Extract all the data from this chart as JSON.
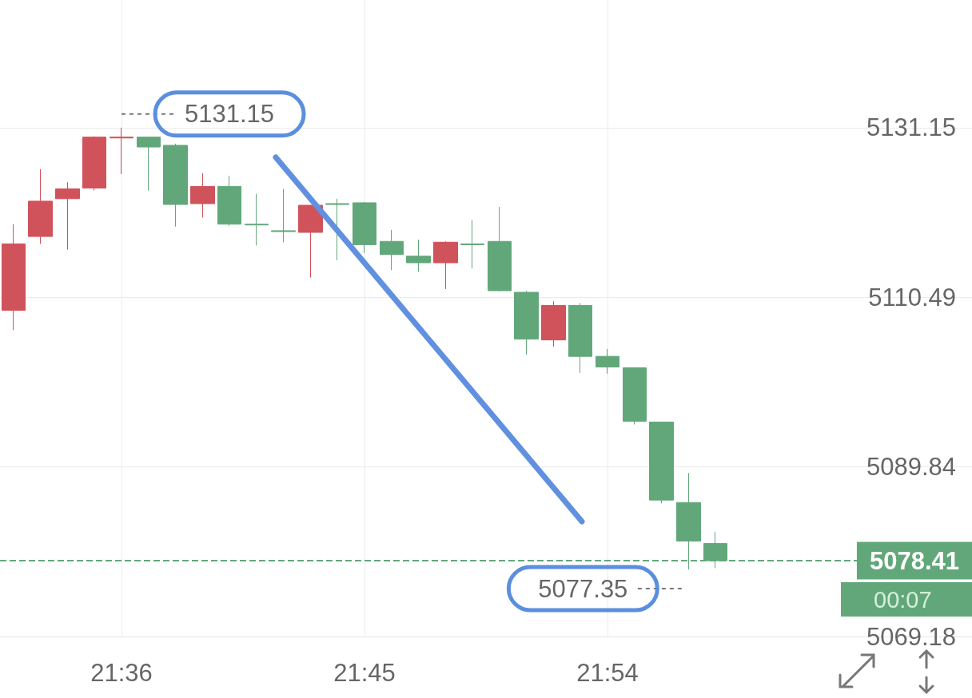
{
  "chart_data": {
    "type": "candlestick",
    "x": [
      21.5333,
      21.55,
      21.5667,
      21.5833,
      21.6,
      21.6167,
      21.6333,
      21.65,
      21.6667,
      21.6833,
      21.7,
      21.7167,
      21.7333,
      21.75,
      21.7667,
      21.7833,
      21.8,
      21.8167,
      21.8333,
      21.85,
      21.8667,
      21.8833,
      21.9,
      21.9167,
      21.9333,
      21.95,
      21.9667
    ],
    "ohlc": [
      [
        5108.9,
        5119.4,
        5106.5,
        5117.0
      ],
      [
        5117.9,
        5126.1,
        5117.0,
        5122.2
      ],
      [
        5122.5,
        5124.5,
        5116.3,
        5123.7
      ],
      [
        5123.8,
        5130.1,
        5123.5,
        5130.0
      ],
      [
        5129.9,
        5131.15,
        5125.5,
        5130.0
      ],
      [
        5130.0,
        5130.0,
        5123.5,
        5128.8
      ],
      [
        5129.0,
        5129.2,
        5119.1,
        5121.8
      ],
      [
        5121.9,
        5125.6,
        5120.2,
        5124.0
      ],
      [
        5124.0,
        5125.3,
        5119.2,
        5119.4
      ],
      [
        5119.4,
        5123.1,
        5116.8,
        5119.3
      ],
      [
        5118.6,
        5123.7,
        5117.2,
        5118.5
      ],
      [
        5118.4,
        5121.7,
        5112.9,
        5121.7
      ],
      [
        5121.9,
        5122.5,
        5115.0,
        5121.8
      ],
      [
        5122.0,
        5122.1,
        5115.9,
        5116.9
      ],
      [
        5117.3,
        5118.7,
        5113.8,
        5115.7
      ],
      [
        5115.5,
        5117.5,
        5113.6,
        5114.7
      ],
      [
        5114.7,
        5117.3,
        5111.5,
        5117.2
      ],
      [
        5117.0,
        5119.9,
        5114.0,
        5116.9
      ],
      [
        5117.3,
        5121.5,
        5111.2,
        5111.3
      ],
      [
        5111.1,
        5111.3,
        5103.5,
        5105.4
      ],
      [
        5105.3,
        5110.0,
        5104.5,
        5109.5
      ],
      [
        5109.5,
        5109.8,
        5101.3,
        5103.3
      ],
      [
        5103.3,
        5104.2,
        5101.2,
        5102.0
      ],
      [
        5101.9,
        5101.9,
        5095.0,
        5095.4
      ],
      [
        5095.3,
        5095.3,
        5085.4,
        5085.8
      ],
      [
        5085.5,
        5089.1,
        5077.35,
        5080.8
      ],
      [
        5080.5,
        5081.9,
        5077.5,
        5078.41
      ]
    ],
    "colors": [
      "#d0525b",
      "#d0525b",
      "#d0525b",
      "#d0525b",
      "#d0525b",
      "#62a77a",
      "#62a77a",
      "#d0525b",
      "#62a77a",
      "#62a77a",
      "#62a77a",
      "#d0525b",
      "#62a77a",
      "#62a77a",
      "#62a77a",
      "#62a77a",
      "#d0525b",
      "#62a77a",
      "#62a77a",
      "#62a77a",
      "#d0525b",
      "#62a77a",
      "#62a77a",
      "#62a77a",
      "#62a77a",
      "#62a77a",
      "#62a77a"
    ],
    "xlim": [
      21.525,
      22.125
    ],
    "xticks": [
      {
        "value": 21.6,
        "label": "21:36"
      },
      {
        "value": 21.75,
        "label": "21:45"
      },
      {
        "value": 21.9,
        "label": "21:54"
      }
    ],
    "ylim": [
      5069.18,
      5146.7
    ],
    "yticks": [
      5069.18,
      5089.84,
      5110.49,
      5131.15
    ],
    "grid": true,
    "ref_lines": [
      {
        "axis": "y",
        "value": 5078.41,
        "label": "5078.41",
        "color": "#62a77a",
        "line_style": "dashed"
      }
    ],
    "annotations": [
      {
        "text": "5131.15",
        "x": 21.6,
        "y": 5131.15
      },
      {
        "text": "5077.35",
        "x": 21.95,
        "y": 5077.35
      },
      "00:07"
    ]
  }
}
